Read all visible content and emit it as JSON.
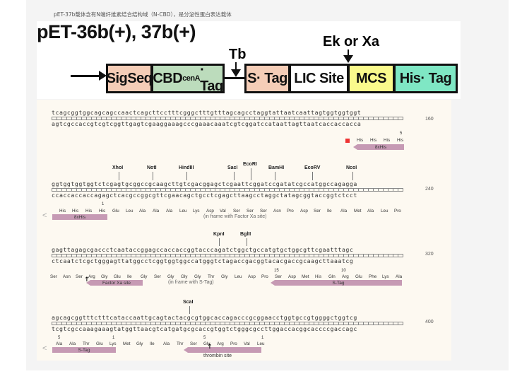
{
  "caption": "pET-37b载体含有N端纤维素结合结构域（N-CBD），是分泌性蛋白表达载体",
  "title": "pET-36b(+), 37b(+)",
  "diagram": {
    "tb": "Tb",
    "ek": "Ek or Xa",
    "boxes": {
      "sigseq": "SigSeq",
      "cbd_main": "CBD",
      "cbd_sub": "cenA",
      "cbd_tail": "· Tag",
      "stag": "S· Tag",
      "lic": "LIC Site",
      "mcs": "MCS",
      "his": "His· Tag"
    }
  },
  "seqmap": {
    "rows": [
      {
        "top": "tcagcggtggcagcagccaactcagcttcctttcgggctttgtttagcagcctaggtattaatcaattagtggtggtggt",
        "bottom": "agtcgccaccgtcgtcggttgagtcgaaggaaagcccgaaacaaatcgtcggatccataattagttaatcaccaccacca",
        "number": "160"
      },
      {
        "top": "ggtggtggtggtctcgagtgcggccgcaagcttgtcgacggagctcgaattcggatccgatatcgccatggccagagga",
        "bottom": "ccaccaccaccagagctcacgccggcgttcgaacagctgcctcgagcttaagcctaggctatagcggtaccggtctcct",
        "number": "240"
      },
      {
        "top": "gagttagagcgaccctcaataccggagccaccaccggtacccagatctggctgccatgtgctggcgttcgaatttagc",
        "bottom": "ctcaatctcgctgggagttatggcctcggtggtggccatgggtctagaccgacggtacacgaccgcaagcttaaatcg",
        "number": "320"
      },
      {
        "top": "agcagcggtttctttcataccaattgcagtactacgcgtggcaccagacccgcggaacctggtgccgtggggctggtcg",
        "bottom": "tcgtcgccaaagaaagtatggttaacgtcatgatgcgcaccgtggtctgggcgccttggaccacggcaccccgaccagc",
        "number": "400"
      }
    ],
    "row1": {
      "aa": [
        "His",
        "His",
        "His",
        "His"
      ],
      "num": "5",
      "feature": "8xHis"
    },
    "row2": {
      "enzymes": [
        "XhoI",
        "NotI",
        "HindIII",
        "SacI",
        "EcoRI",
        "BamHI",
        "EcoRV",
        "NcoI"
      ],
      "aa": [
        "His",
        "His",
        "His",
        "His",
        "Glu",
        "Leu",
        "Ala",
        "Ala",
        "Ala",
        "Leu",
        "Lys",
        "Asp",
        "Val",
        "Ser",
        "Ser",
        "Ser",
        "Asn",
        "Pro",
        "Asp",
        "Ser",
        "Ile",
        "Ala",
        "Met",
        "Ala",
        "Leu",
        "Pro"
      ],
      "num": "1",
      "feature": "8xHis",
      "inframe": "(in frame with Factor Xa site)"
    },
    "row3": {
      "enzymes": [
        "KpnI",
        "BglII"
      ],
      "aa": [
        "Ser",
        "Asn",
        "Ser",
        "Arg",
        "Gly",
        "Glu",
        "Ile",
        "Gly",
        "Ser",
        "Gly",
        "Gly",
        "Gly",
        "Thr",
        "Gly",
        "Leu",
        "Asp",
        "Pro",
        "Ser",
        "Asp",
        "Met",
        "His",
        "Gln",
        "Arg",
        "Glu",
        "Phe",
        "Lys",
        "Ala"
      ],
      "nums": [
        "15",
        "10"
      ],
      "feature_xa": "Factor Xa site",
      "feature_stag": "S-Tag",
      "inframe": "(in frame with S-Tag)"
    },
    "row4": {
      "enzymes": [
        "ScaI"
      ],
      "aa": [
        "Ala",
        "Ala",
        "Thr",
        "Glu",
        "Lys",
        "Met",
        "Gly",
        "Ile",
        "Ala",
        "Thr",
        "Ser",
        "Gly",
        "Arg",
        "Pro",
        "Val",
        "Leu"
      ],
      "nums": [
        "5",
        "1",
        "5",
        "1"
      ],
      "feature_stag": "S-Tag",
      "feature_thrombin": "thrombin site"
    }
  }
}
